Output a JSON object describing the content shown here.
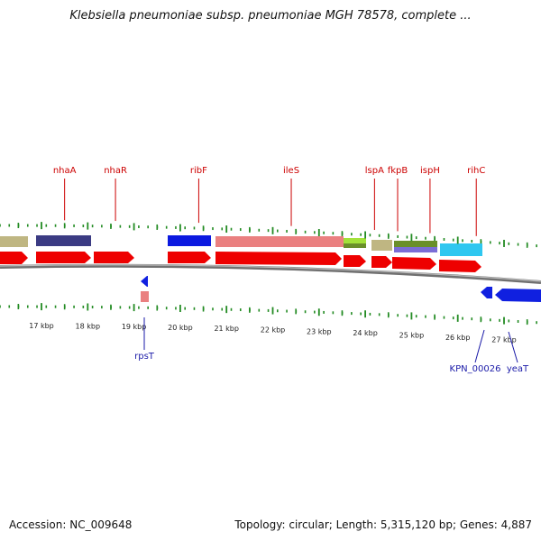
{
  "title": "Klebsiella pneumoniae subsp. pneumoniae MGH 78578, complete ...",
  "footer": {
    "accession": "Accession: NC_009648",
    "summary": "Topology: circular; Length: 5,315,120 bp; Genes: 4,887"
  },
  "colors": {
    "red_gene": "#ee0000",
    "backbone": "#888888",
    "minor_tick": "#228b22",
    "label_top": "#cc0000",
    "label_bottom": "#1a1aa8"
  },
  "axis": {
    "ticks": [
      {
        "kbp": 17,
        "label": "17 kbp"
      },
      {
        "kbp": 18,
        "label": "18 kbp"
      },
      {
        "kbp": 19,
        "label": "19 kbp"
      },
      {
        "kbp": 20,
        "label": "20 kbp"
      },
      {
        "kbp": 21,
        "label": "21 kbp"
      },
      {
        "kbp": 22,
        "label": "22 kbp"
      },
      {
        "kbp": 23,
        "label": "23 kbp"
      },
      {
        "kbp": 24,
        "label": "24 kbp"
      },
      {
        "kbp": 25,
        "label": "25 kbp"
      },
      {
        "kbp": 26,
        "label": "26 kbp"
      },
      {
        "kbp": 27,
        "label": "27 kbp"
      }
    ]
  },
  "forward_labels": [
    {
      "name": "nhaA",
      "kbp": 17.5
    },
    {
      "name": "nhaR",
      "kbp": 18.6
    },
    {
      "name": "ribF",
      "kbp": 20.4
    },
    {
      "name": "ileS",
      "kbp": 22.4
    },
    {
      "name": "lspA",
      "kbp": 24.2
    },
    {
      "name": "fkpB",
      "kbp": 24.7
    },
    {
      "name": "ispH",
      "kbp": 25.4
    },
    {
      "name": "rihC",
      "kbp": 26.4
    }
  ],
  "reverse_labels": [
    {
      "name": "rpsT",
      "kbp": 19.0
    },
    {
      "name": "KPN_00026",
      "kbp": 27.0
    },
    {
      "name": "yeaT",
      "kbp": 27.5
    }
  ]
}
